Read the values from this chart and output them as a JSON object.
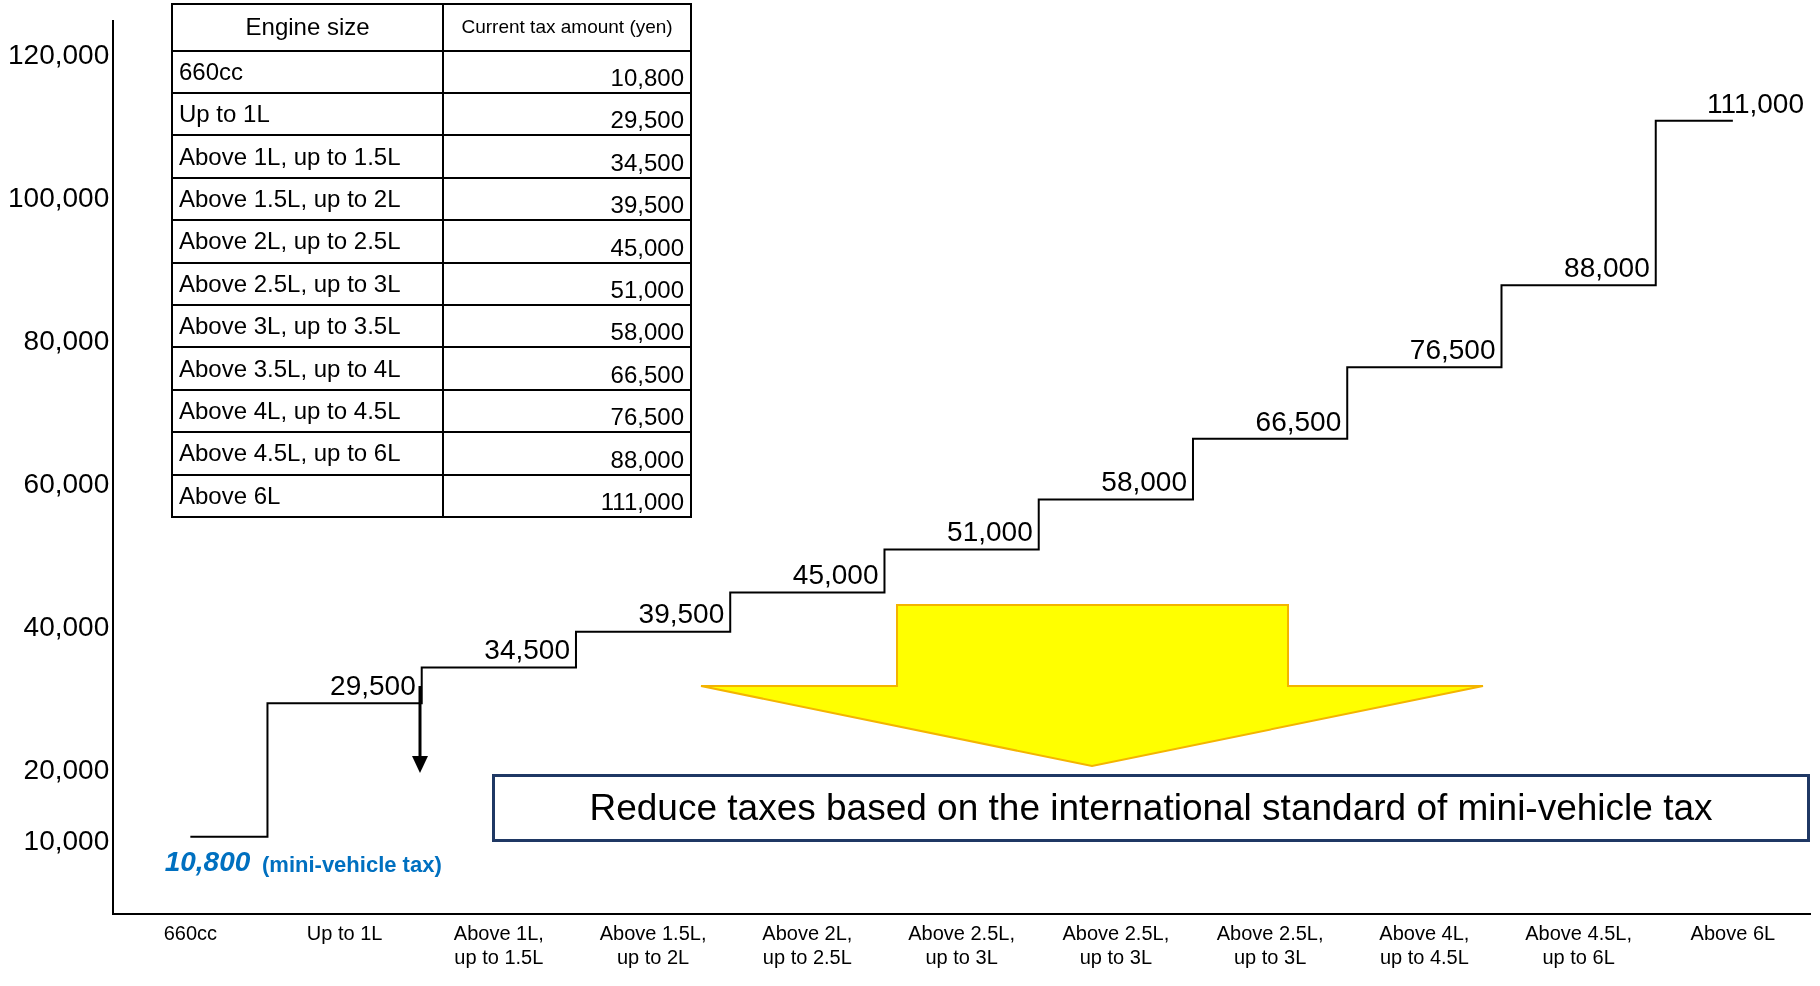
{
  "chart_data": {
    "type": "step",
    "categories": [
      "660cc",
      "Up to 1L",
      "Above 1L, up to 1.5L",
      "Above 1.5L, up to 2L",
      "Above 2L, up to 2.5L",
      "Above 2.5L, up to 3L",
      "Above 2.5L, up to 3L",
      "Above 2.5L, up to 3L",
      "Above 4L, up to 4.5L",
      "Above 4.5L, up to 6L",
      "Above 6L"
    ],
    "values": [
      10800,
      29500,
      34500,
      39500,
      45000,
      51000,
      58000,
      66500,
      76500,
      88000,
      111000
    ],
    "value_labels": [
      "10,800",
      "29,500",
      "34,500",
      "39,500",
      "45,000",
      "51,000",
      "58,000",
      "66,500",
      "76,500",
      "88,000",
      "111,000"
    ],
    "color": "#000000",
    "ylim": [
      0,
      125000
    ],
    "yticks": [
      {
        "value": 10000,
        "label": "10,000"
      },
      {
        "value": 20000,
        "label": "20,000"
      },
      {
        "value": 40000,
        "label": "40,000"
      },
      {
        "value": 60000,
        "label": "60,000"
      },
      {
        "value": 80000,
        "label": "80,000"
      },
      {
        "value": 100000,
        "label": "100,000"
      },
      {
        "value": 120000,
        "label": "120,000"
      }
    ],
    "grid": false,
    "legend": false,
    "marker": "none",
    "line_style": "solid",
    "annotations": [
      "Engine size",
      "Current tax amount (yen)",
      "660cc",
      "Up to 1L",
      "Above 1L, up to 1.5L",
      "Above 1.5L, up to 2L",
      "Above 2L, up to 2.5L",
      "Above 2.5L, up to 3L",
      "Above 3L, up to 3.5L",
      "Above 3.5L, up to 4L",
      "Above 4L, up to 4.5L",
      "Above 4.5L, up to 6L",
      "Above 6L",
      "(mini-vehicle tax)",
      "Reduce taxes based on the international standard of mini-vehicle tax"
    ]
  }
}
